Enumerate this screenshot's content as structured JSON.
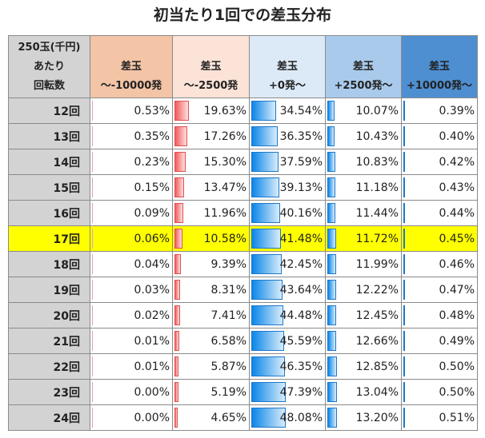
{
  "chart_data": {
    "type": "table",
    "title": "初当たり1回での差玉分布",
    "row_header": [
      "250玉(千円)",
      "あたり",
      "回転数"
    ],
    "columns": [
      {
        "line1": "差玉",
        "line2": "～-10000発",
        "color": "#f3c4a6",
        "bar": false
      },
      {
        "line1": "差玉",
        "line2": "～-2500発",
        "color": "#fbe3d7",
        "bar": "red"
      },
      {
        "line1": "差玉",
        "line2": "+0発～",
        "color": "#dceaf8",
        "bar": "blue"
      },
      {
        "line1": "差玉",
        "line2": "+2500発～",
        "color": "#a9caeb",
        "bar": "blue"
      },
      {
        "line1": "差玉",
        "line2": "+10000発～",
        "color": "#4e8fd2",
        "bar": "blue"
      }
    ],
    "highlight_row": "17回",
    "highlight_color": "#ffff00",
    "rows": [
      {
        "label": "12回",
        "values": [
          "0.53%",
          "19.63%",
          "34.54%",
          "10.07%",
          "0.39%"
        ]
      },
      {
        "label": "13回",
        "values": [
          "0.35%",
          "17.26%",
          "36.35%",
          "10.43%",
          "0.40%"
        ]
      },
      {
        "label": "14回",
        "values": [
          "0.23%",
          "15.30%",
          "37.59%",
          "10.83%",
          "0.42%"
        ]
      },
      {
        "label": "15回",
        "values": [
          "0.15%",
          "13.47%",
          "39.13%",
          "11.18%",
          "0.43%"
        ]
      },
      {
        "label": "16回",
        "values": [
          "0.09%",
          "11.96%",
          "40.16%",
          "11.44%",
          "0.44%"
        ]
      },
      {
        "label": "17回",
        "values": [
          "0.06%",
          "10.58%",
          "41.48%",
          "11.72%",
          "0.45%"
        ]
      },
      {
        "label": "18回",
        "values": [
          "0.04%",
          "9.39%",
          "42.45%",
          "11.99%",
          "0.46%"
        ]
      },
      {
        "label": "19回",
        "values": [
          "0.03%",
          "8.31%",
          "43.64%",
          "12.22%",
          "0.47%"
        ]
      },
      {
        "label": "20回",
        "values": [
          "0.02%",
          "7.41%",
          "44.48%",
          "12.45%",
          "0.48%"
        ]
      },
      {
        "label": "21回",
        "values": [
          "0.01%",
          "6.58%",
          "45.59%",
          "12.66%",
          "0.49%"
        ]
      },
      {
        "label": "22回",
        "values": [
          "0.01%",
          "5.87%",
          "46.35%",
          "12.85%",
          "0.50%"
        ]
      },
      {
        "label": "23回",
        "values": [
          "0.00%",
          "5.19%",
          "47.39%",
          "13.04%",
          "0.50%"
        ]
      },
      {
        "label": "24回",
        "values": [
          "0.00%",
          "4.65%",
          "48.08%",
          "13.20%",
          "0.51%"
        ]
      }
    ]
  }
}
